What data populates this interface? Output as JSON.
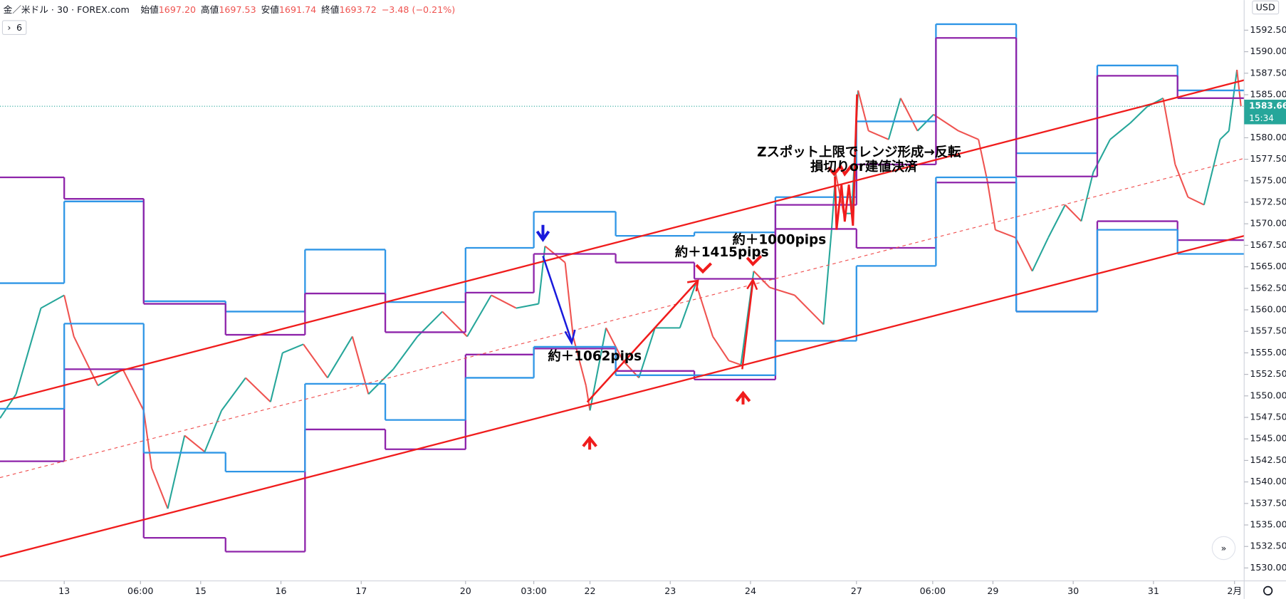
{
  "header": {
    "symbol": "金／米ドル · 30 · FOREX.com",
    "quote": [
      {
        "label": "始値",
        "value": "1697.20"
      },
      {
        "label": "高値",
        "value": "1697.53"
      },
      {
        "label": "安値",
        "value": "1691.74"
      },
      {
        "label": "終値",
        "value": "1693.72"
      }
    ],
    "change": "−3.48 (−0.21%)",
    "indicator_count": "6",
    "currency": "USD"
  },
  "chart_data": {
    "type": "line",
    "xlim": [
      0,
      15.5
    ],
    "ylim": [
      1528.5,
      1596
    ],
    "grid": false,
    "xticks": [
      {
        "value": 0.8,
        "label": "13"
      },
      {
        "value": 1.75,
        "label": "06:00"
      },
      {
        "value": 2.5,
        "label": "15"
      },
      {
        "value": 3.5,
        "label": "16"
      },
      {
        "value": 4.5,
        "label": "17"
      },
      {
        "value": 5.8,
        "label": "20"
      },
      {
        "value": 6.65,
        "label": "03:00"
      },
      {
        "value": 7.35,
        "label": "22"
      },
      {
        "value": 8.35,
        "label": "23"
      },
      {
        "value": 9.35,
        "label": "24"
      },
      {
        "value": 10.67,
        "label": "27"
      },
      {
        "value": 11.62,
        "label": "06:00"
      },
      {
        "value": 12.37,
        "label": "29"
      },
      {
        "value": 13.37,
        "label": "30"
      },
      {
        "value": 14.37,
        "label": "31"
      },
      {
        "value": 15.38,
        "label": "2月"
      }
    ],
    "yticks": [
      {
        "value": 1530,
        "label": "1530.00"
      },
      {
        "value": 1532.5,
        "label": "1532.50"
      },
      {
        "value": 1535,
        "label": "1535.00"
      },
      {
        "value": 1537.5,
        "label": "1537.50"
      },
      {
        "value": 1540,
        "label": "1540.00"
      },
      {
        "value": 1542.5,
        "label": "1542.50"
      },
      {
        "value": 1545,
        "label": "1545.00"
      },
      {
        "value": 1547.5,
        "label": "1547.50"
      },
      {
        "value": 1550,
        "label": "1550.00"
      },
      {
        "value": 1552.5,
        "label": "1552.50"
      },
      {
        "value": 1555,
        "label": "1555.00"
      },
      {
        "value": 1557.5,
        "label": "1557.50"
      },
      {
        "value": 1560,
        "label": "1560.00"
      },
      {
        "value": 1562.5,
        "label": "1562.50"
      },
      {
        "value": 1565,
        "label": "1565.00"
      },
      {
        "value": 1567.5,
        "label": "1567.50"
      },
      {
        "value": 1570,
        "label": "1570.00"
      },
      {
        "value": 1572.5,
        "label": "1572.50"
      },
      {
        "value": 1575,
        "label": "1575.00"
      },
      {
        "value": 1577.5,
        "label": "1577.50"
      },
      {
        "value": 1580,
        "label": "1580.00"
      },
      {
        "value": 1582.5,
        "label": "1582.50"
      },
      {
        "value": 1585,
        "label": "1585.00"
      },
      {
        "value": 1587.5,
        "label": "1587.50"
      },
      {
        "value": 1590,
        "label": "1590.00"
      },
      {
        "value": 1592.5,
        "label": "1592.50"
      }
    ],
    "last_price": 1583.66,
    "last_price_label": "1583.66",
    "countdown": "15:34",
    "series": [
      {
        "kind": "price",
        "up_color": "#26a69a",
        "down_color": "#ef5350",
        "x": [
          0,
          0.2,
          0.51,
          0.8,
          0.92,
          1.22,
          1.53,
          1.79,
          1.89,
          2.09,
          2.3,
          2.55,
          2.76,
          3.06,
          3.37,
          3.52,
          3.78,
          4.08,
          4.39,
          4.59,
          4.9,
          5.2,
          5.51,
          5.82,
          6.12,
          6.43,
          6.71,
          6.79,
          7.04,
          7.14,
          7.3,
          7.35,
          7.55,
          7.76,
          7.96,
          8.16,
          8.47,
          8.67,
          8.88,
          9.08,
          9.23,
          9.39,
          9.59,
          9.9,
          10.26,
          10.36,
          10.41,
          10.51,
          10.61,
          10.69,
          10.82,
          11.07,
          11.22,
          11.43,
          11.63,
          11.94,
          12.19,
          12.3,
          12.4,
          12.65,
          12.86,
          13.06,
          13.27,
          13.47,
          13.62,
          13.83,
          14.08,
          14.29,
          14.49,
          14.64,
          14.8,
          15,
          15.2,
          15.31,
          15.41,
          15.46
        ],
        "values": [
          1547.4,
          1550.2,
          1560.2,
          1561.7,
          1556.9,
          1551.2,
          1553.1,
          1548.3,
          1541.6,
          1536.9,
          1545.4,
          1543.5,
          1548.3,
          1552.1,
          1549.3,
          1555,
          1556,
          1552.1,
          1556.9,
          1550.2,
          1553.1,
          1556.9,
          1559.8,
          1556.9,
          1561.7,
          1560.2,
          1560.7,
          1567.4,
          1565.5,
          1556.9,
          1551.2,
          1548.3,
          1557.9,
          1554.1,
          1552.1,
          1557.9,
          1557.9,
          1563.1,
          1556.9,
          1554.1,
          1553.6,
          1564.5,
          1562.6,
          1561.7,
          1558.3,
          1569.3,
          1575.9,
          1571.2,
          1571.2,
          1585.5,
          1580.8,
          1579.8,
          1584.6,
          1580.8,
          1582.7,
          1580.8,
          1579.8,
          1575,
          1569.3,
          1568.4,
          1564.5,
          1568.4,
          1572.2,
          1570.3,
          1576,
          1579.8,
          1581.7,
          1583.6,
          1584.6,
          1576.9,
          1573.1,
          1572.2,
          1579.8,
          1580.8,
          1587.9,
          1583.66
        ]
      },
      {
        "kind": "step",
        "color": "#2f96e6",
        "x": [
          0,
          0.8,
          1.79,
          2.81,
          3.8,
          4.8,
          5.8,
          6.65,
          7.67,
          8.65,
          9.66,
          10.67,
          11.66,
          12.66,
          13.67,
          14.67
        ],
        "values": [
          1563.1,
          1572.6,
          1561,
          1559.8,
          1567,
          1560.9,
          1567.2,
          1571.4,
          1568.6,
          1569,
          1573.1,
          1581.9,
          1593.2,
          1578.2,
          1588.4,
          1585.5
        ]
      },
      {
        "kind": "step",
        "color": "#8e24aa",
        "x": [
          0,
          0.8,
          1.79,
          2.81,
          3.8,
          4.8,
          5.8,
          6.65,
          7.67,
          8.65,
          9.66,
          10.67,
          11.66,
          12.66,
          13.67,
          14.67
        ],
        "values": [
          1575.4,
          1572.9,
          1560.7,
          1557.1,
          1561.9,
          1557.4,
          1562,
          1566.5,
          1565.5,
          1563.6,
          1572.2,
          1576.9,
          1591.6,
          1575.5,
          1587.2,
          1584.6
        ]
      },
      {
        "kind": "step",
        "color": "#8e24aa",
        "x": [
          0,
          0.8,
          1.79,
          2.81,
          3.8,
          4.8,
          5.8,
          6.65,
          7.67,
          8.65,
          9.66,
          10.67,
          11.66,
          12.66,
          13.67,
          14.67
        ],
        "values": [
          1542.4,
          1553.1,
          1533.5,
          1531.9,
          1546.1,
          1543.8,
          1554.8,
          1555.5,
          1552.9,
          1551.9,
          1569.4,
          1567.2,
          1574.8,
          1559.8,
          1570.3,
          1568.1
        ]
      },
      {
        "kind": "step",
        "color": "#2f96e6",
        "x": [
          0,
          0.8,
          1.79,
          2.81,
          3.8,
          4.8,
          5.8,
          6.65,
          7.67,
          8.65,
          9.66,
          10.67,
          11.66,
          12.66,
          13.67,
          14.67
        ],
        "values": [
          1548.5,
          1558.4,
          1543.4,
          1541.2,
          1551.4,
          1547.2,
          1552.1,
          1555.7,
          1552.4,
          1552.4,
          1556.4,
          1565.1,
          1575.4,
          1559.8,
          1569.3,
          1566.5
        ]
      },
      {
        "kind": "trend",
        "color": "#f01c1c",
        "x": [
          0,
          15.5
        ],
        "values": [
          1549.3,
          1586.7
        ]
      },
      {
        "kind": "trend",
        "color": "#f01c1c",
        "x": [
          0,
          15.5
        ],
        "values": [
          1531.3,
          1568.6
        ]
      },
      {
        "kind": "trend",
        "color": "#f05050",
        "dashed": true,
        "x": [
          0,
          15.5
        ],
        "values": [
          1540.5,
          1577.6
        ]
      }
    ],
    "annotations": [
      "約＋1062pips",
      "約＋1415pips",
      "約＋1000pips",
      "Zスポット上限でレンジ形成→反転",
      "損切りor建値決済"
    ]
  }
}
